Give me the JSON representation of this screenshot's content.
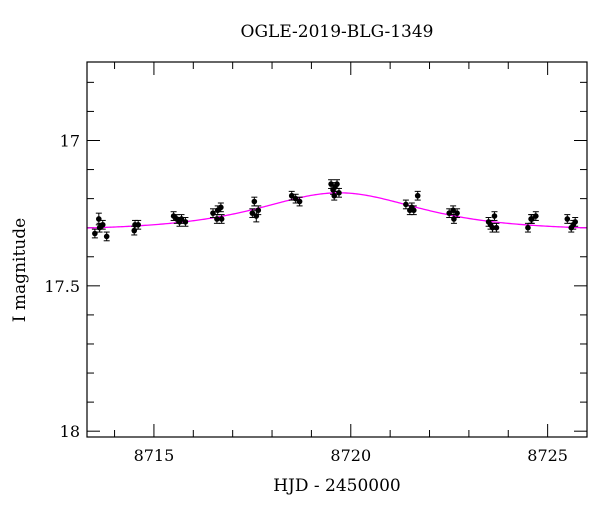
{
  "chart_data": {
    "type": "scatter",
    "title": "OGLE-2019-BLG-1349",
    "xlabel": "HJD - 2450000",
    "ylabel": "I magnitude",
    "xlim": [
      8713.3,
      8726.0
    ],
    "ylim": [
      18.02,
      16.73
    ],
    "y_inverted": true,
    "x_ticks": [
      8715,
      8720,
      8725
    ],
    "y_ticks": [
      17,
      17.5,
      18
    ],
    "grid": false,
    "colors": {
      "points": "#000000",
      "model": "#ff00ff"
    },
    "model_curve": {
      "type": "point-lens",
      "baseline_mag": 17.31,
      "peak_mag": 17.18,
      "t0": 8719.7,
      "tE": 1.9
    },
    "series": [
      {
        "type": "points-with-errorbars",
        "x": [
          8713.5,
          8713.6,
          8713.62,
          8713.7,
          8713.8,
          8714.5,
          8714.52,
          8714.6,
          8715.5,
          8715.58,
          8715.65,
          8715.7,
          8715.8,
          8716.5,
          8716.6,
          8716.62,
          8716.7,
          8716.72,
          8717.5,
          8717.55,
          8717.6,
          8717.65,
          8718.5,
          8718.6,
          8718.7,
          8719.5,
          8719.55,
          8719.58,
          8719.6,
          8719.65,
          8719.7,
          8721.4,
          8721.5,
          8721.55,
          8721.6,
          8721.7,
          8722.5,
          8722.6,
          8722.62,
          8722.7,
          8723.5,
          8723.55,
          8723.6,
          8723.65,
          8723.7,
          8724.5,
          8724.58,
          8724.6,
          8724.7,
          8725.5,
          8725.6,
          8725.65,
          8725.7
        ],
        "y": [
          17.32,
          17.27,
          17.3,
          17.29,
          17.33,
          17.31,
          17.29,
          17.29,
          17.26,
          17.27,
          17.28,
          17.27,
          17.28,
          17.25,
          17.27,
          17.24,
          17.23,
          17.27,
          17.25,
          17.21,
          17.26,
          17.24,
          17.19,
          17.2,
          17.21,
          17.15,
          17.17,
          17.19,
          17.16,
          17.15,
          17.18,
          17.22,
          17.24,
          17.23,
          17.24,
          17.19,
          17.25,
          17.24,
          17.27,
          17.25,
          17.28,
          17.29,
          17.3,
          17.26,
          17.3,
          17.3,
          17.27,
          17.27,
          17.26,
          17.27,
          17.3,
          17.29,
          17.28
        ],
        "err": [
          0.015,
          0.02,
          0.015,
          0.015,
          0.015,
          0.015,
          0.015,
          0.015,
          0.015,
          0.015,
          0.015,
          0.015,
          0.015,
          0.015,
          0.015,
          0.015,
          0.015,
          0.015,
          0.015,
          0.015,
          0.02,
          0.015,
          0.015,
          0.015,
          0.015,
          0.015,
          0.015,
          0.015,
          0.015,
          0.015,
          0.015,
          0.015,
          0.015,
          0.015,
          0.015,
          0.015,
          0.015,
          0.015,
          0.015,
          0.015,
          0.015,
          0.015,
          0.015,
          0.015,
          0.015,
          0.015,
          0.015,
          0.015,
          0.015,
          0.015,
          0.015,
          0.015,
          0.015
        ]
      }
    ]
  }
}
